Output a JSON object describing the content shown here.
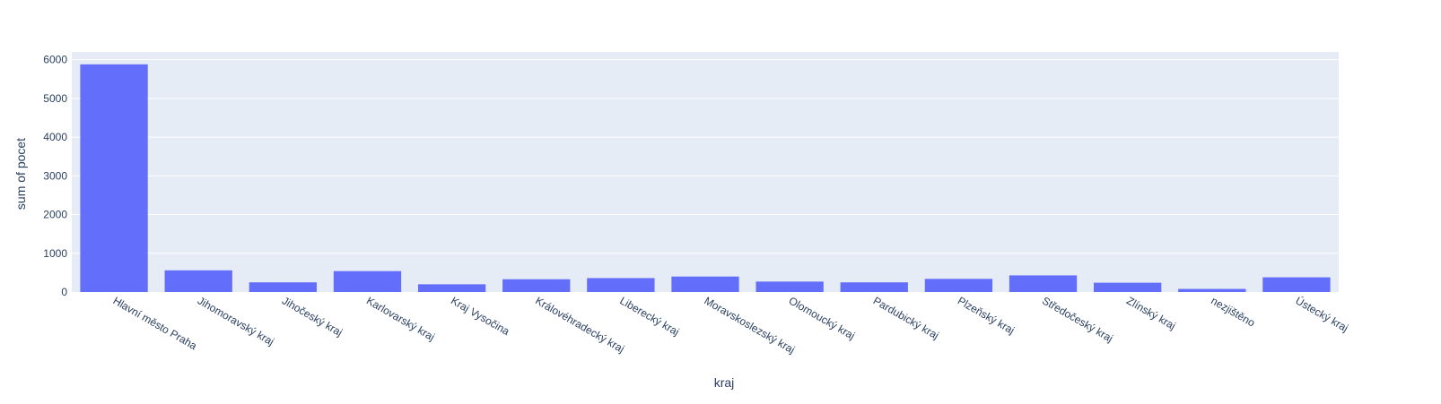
{
  "chart_data": {
    "type": "bar",
    "xlabel": "kraj",
    "ylabel": "sum of pocet",
    "ylim": [
      0,
      6200
    ],
    "yticks": [
      0,
      1000,
      2000,
      3000,
      4000,
      5000,
      6000
    ],
    "grid": true,
    "categories": [
      "Hlavní město Praha",
      "Jihomoravský kraj",
      "Jihočeský kraj",
      "Karlovarský kraj",
      "Kraj Vysočina",
      "Královéhradecký kraj",
      "Liberecký kraj",
      "Moravskoslezský kraj",
      "Olomoucký kraj",
      "Pardubický kraj",
      "Plzeňský kraj",
      "Středočeský kraj",
      "Zlínský kraj",
      "nezjištěno",
      "Ústecký kraj"
    ],
    "values": [
      5880,
      560,
      250,
      540,
      200,
      330,
      360,
      400,
      270,
      250,
      340,
      430,
      240,
      80,
      380
    ],
    "colors": {
      "bar": "#636efa",
      "plot_bg": "#e5ecf6",
      "grid": "#ffffff",
      "text": "#2a3f5f"
    }
  }
}
